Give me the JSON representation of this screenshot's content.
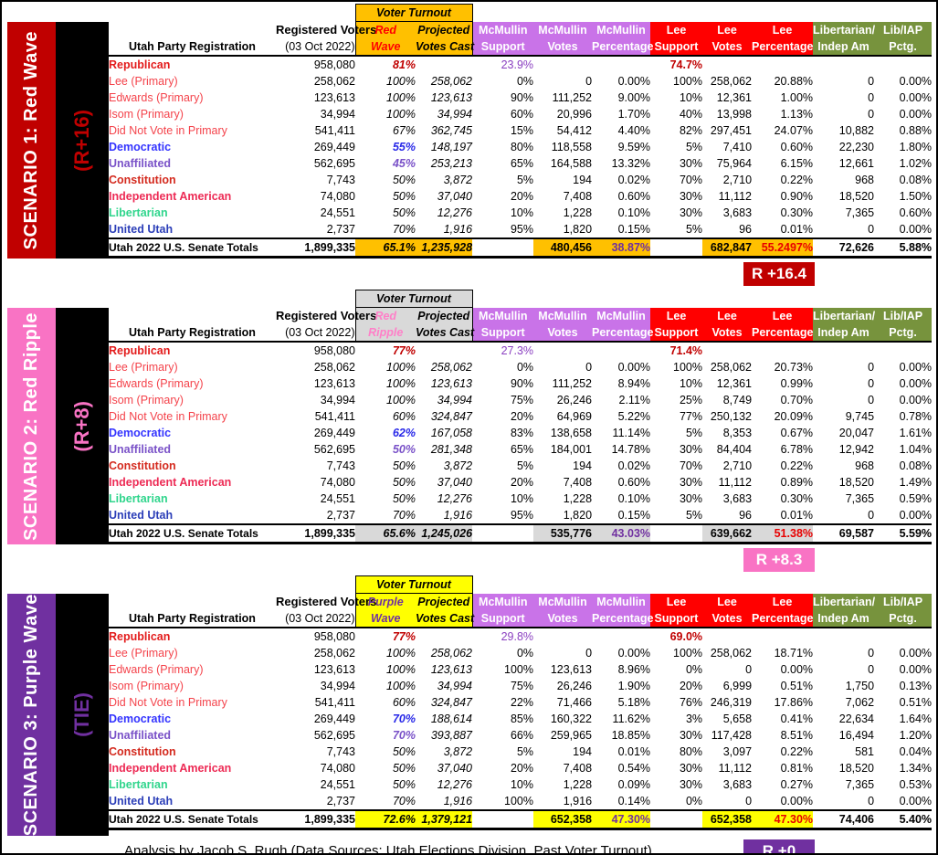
{
  "page": {
    "footer": "Analysis by Jacob S. Rugh (Data Sources: Utah Elections Division, Past Voter Turnout)"
  },
  "palette": {
    "republican_label": "#E31B1B",
    "primary_sub_label": "#F4434B",
    "democratic_label": "#3333FF",
    "unaffiliated_label": "#7A52C8",
    "constitution_label": "#D42A1E",
    "independent_american_label": "#ED2B55",
    "libertarian_label": "#2FD58C",
    "united_utah_label": "#2B3EB8",
    "mcmullin_total_pct": "#7030A0",
    "lee_total_pct": "#E80000"
  },
  "chart_data": {
    "type": "table",
    "group_colors": {
      "mcmullin": "#C973E8",
      "lee": "#FF0000",
      "libertarian": "#77933D"
    },
    "headers": {
      "party_col": "Utah Party Registration",
      "registered": [
        "Registered Voters",
        "(03 Oct 2022)"
      ],
      "voter_turnout": "Voter Turnout",
      "projected": [
        "Projected",
        "Votes Cast"
      ],
      "mcmullin": [
        [
          "McMullin",
          "Support"
        ],
        [
          "McMullin",
          "Votes"
        ],
        [
          "McMullin",
          "Percentage"
        ]
      ],
      "lee": [
        [
          "Lee",
          "Support"
        ],
        [
          "Lee",
          "Votes"
        ],
        [
          "Lee",
          "Percentage"
        ]
      ],
      "lib": [
        [
          "Libertarian/",
          "Indep Am"
        ],
        [
          "Lib/IAP",
          "Pctg."
        ]
      ]
    },
    "column_order": [
      "Registered Voters",
      "Voter Turnout %",
      "Projected Votes Cast",
      "McMullin Support",
      "McMullin Votes",
      "McMullin Percentage",
      "Lee Support",
      "Lee Votes",
      "Lee Percentage",
      "Libertarian/Indep Am Votes",
      "Lib/IAP Pctg."
    ],
    "scenarios": [
      {
        "title": "SCENARIO 1: Red Wave",
        "margin_label": "(R+16)",
        "badge": "R +16.4",
        "turnout_header": [
          "Red",
          "Wave"
        ],
        "colors": {
          "accent": "#C00000",
          "highlight": "#FFC000",
          "turnout_text": "#FF0000",
          "margin_text": "#C00000"
        },
        "rows": [
          {
            "label": "Republican",
            "s": "rep",
            "t": "rep",
            "ov": true,
            "v": [
              "958,080",
              "81%",
              "",
              "23.9%",
              "",
              "",
              "74.7%",
              "",
              "",
              "",
              ""
            ]
          },
          {
            "label": "Lee (Primary)",
            "s": "sub",
            "sub": true,
            "v": [
              "258,062",
              "100%",
              "258,062",
              "0%",
              "0",
              "0.00%",
              "100%",
              "258,062",
              "20.88%",
              "0",
              "0.00%"
            ]
          },
          {
            "label": "Edwards (Primary)",
            "s": "sub",
            "sub": true,
            "v": [
              "123,613",
              "100%",
              "123,613",
              "90%",
              "111,252",
              "9.00%",
              "10%",
              "12,361",
              "1.00%",
              "0",
              "0.00%"
            ]
          },
          {
            "label": "Isom (Primary)",
            "s": "sub",
            "sub": true,
            "v": [
              "34,994",
              "100%",
              "34,994",
              "60%",
              "20,996",
              "1.70%",
              "40%",
              "13,998",
              "1.13%",
              "0",
              "0.00%"
            ]
          },
          {
            "label": "Did Not Vote in Primary",
            "s": "sub",
            "sub": true,
            "v": [
              "541,411",
              "67%",
              "362,745",
              "15%",
              "54,412",
              "4.40%",
              "82%",
              "297,451",
              "24.07%",
              "10,882",
              "0.88%"
            ]
          },
          {
            "label": "Democratic",
            "s": "dem",
            "t": "dem",
            "v": [
              "269,449",
              "55%",
              "148,197",
              "80%",
              "118,558",
              "9.59%",
              "5%",
              "7,410",
              "0.60%",
              "22,230",
              "1.80%"
            ]
          },
          {
            "label": "Unaffiliated",
            "s": "una",
            "t": "una",
            "v": [
              "562,695",
              "45%",
              "253,213",
              "65%",
              "164,588",
              "13.32%",
              "30%",
              "75,964",
              "6.15%",
              "12,661",
              "1.02%"
            ]
          },
          {
            "label": "Constitution",
            "s": "con",
            "v": [
              "7,743",
              "50%",
              "3,872",
              "5%",
              "194",
              "0.02%",
              "70%",
              "2,710",
              "0.22%",
              "968",
              "0.08%"
            ]
          },
          {
            "label": "Independent American",
            "s": "ind",
            "v": [
              "74,080",
              "50%",
              "37,040",
              "20%",
              "7,408",
              "0.60%",
              "30%",
              "11,112",
              "0.90%",
              "18,520",
              "1.50%"
            ]
          },
          {
            "label": "Libertarian",
            "s": "lib",
            "v": [
              "24,551",
              "50%",
              "12,276",
              "10%",
              "1,228",
              "0.10%",
              "30%",
              "3,683",
              "0.30%",
              "7,365",
              "0.60%"
            ]
          },
          {
            "label": "United Utah",
            "s": "uni",
            "v": [
              "2,737",
              "70%",
              "1,916",
              "95%",
              "1,820",
              "0.15%",
              "5%",
              "96",
              "0.01%",
              "0",
              "0.00%"
            ]
          }
        ],
        "totals": {
          "label": "Utah 2022 U.S. Senate Totals",
          "v": [
            "1,899,335",
            "65.1%",
            "1,235,928",
            "",
            "480,456",
            "38.87%",
            "",
            "682,847",
            "55.2497%",
            "72,626",
            "5.88%"
          ]
        }
      },
      {
        "title": "SCENARIO 2: Red Ripple",
        "margin_label": "(R+8)",
        "badge": "R +8.3",
        "turnout_header": [
          "Red",
          "Ripple"
        ],
        "colors": {
          "accent": "#F973C4",
          "highlight": "#D9D9D9",
          "turnout_text": "#FF7FC8",
          "margin_text": "#F973C4"
        },
        "rows": [
          {
            "label": "Republican",
            "s": "rep",
            "t": "rep",
            "ov": true,
            "v": [
              "958,080",
              "77%",
              "",
              "27.3%",
              "",
              "",
              "71.4%",
              "",
              "",
              "",
              ""
            ]
          },
          {
            "label": "Lee (Primary)",
            "s": "sub",
            "sub": true,
            "v": [
              "258,062",
              "100%",
              "258,062",
              "0%",
              "0",
              "0.00%",
              "100%",
              "258,062",
              "20.73%",
              "0",
              "0.00%"
            ]
          },
          {
            "label": "Edwards (Primary)",
            "s": "sub",
            "sub": true,
            "v": [
              "123,613",
              "100%",
              "123,613",
              "90%",
              "111,252",
              "8.94%",
              "10%",
              "12,361",
              "0.99%",
              "0",
              "0.00%"
            ]
          },
          {
            "label": "Isom (Primary)",
            "s": "sub",
            "sub": true,
            "v": [
              "34,994",
              "100%",
              "34,994",
              "75%",
              "26,246",
              "2.11%",
              "25%",
              "8,749",
              "0.70%",
              "0",
              "0.00%"
            ]
          },
          {
            "label": "Did Not Vote in Primary",
            "s": "sub",
            "sub": true,
            "v": [
              "541,411",
              "60%",
              "324,847",
              "20%",
              "64,969",
              "5.22%",
              "77%",
              "250,132",
              "20.09%",
              "9,745",
              "0.78%"
            ]
          },
          {
            "label": "Democratic",
            "s": "dem",
            "t": "dem",
            "v": [
              "269,449",
              "62%",
              "167,058",
              "83%",
              "138,658",
              "11.14%",
              "5%",
              "8,353",
              "0.67%",
              "20,047",
              "1.61%"
            ]
          },
          {
            "label": "Unaffiliated",
            "s": "una",
            "t": "una",
            "v": [
              "562,695",
              "50%",
              "281,348",
              "65%",
              "184,001",
              "14.78%",
              "30%",
              "84,404",
              "6.78%",
              "12,942",
              "1.04%"
            ]
          },
          {
            "label": "Constitution",
            "s": "con",
            "v": [
              "7,743",
              "50%",
              "3,872",
              "5%",
              "194",
              "0.02%",
              "70%",
              "2,710",
              "0.22%",
              "968",
              "0.08%"
            ]
          },
          {
            "label": "Independent American",
            "s": "ind",
            "v": [
              "74,080",
              "50%",
              "37,040",
              "20%",
              "7,408",
              "0.60%",
              "30%",
              "11,112",
              "0.89%",
              "18,520",
              "1.49%"
            ]
          },
          {
            "label": "Libertarian",
            "s": "lib",
            "v": [
              "24,551",
              "50%",
              "12,276",
              "10%",
              "1,228",
              "0.10%",
              "30%",
              "3,683",
              "0.30%",
              "7,365",
              "0.59%"
            ]
          },
          {
            "label": "United Utah",
            "s": "uni",
            "v": [
              "2,737",
              "70%",
              "1,916",
              "95%",
              "1,820",
              "0.15%",
              "5%",
              "96",
              "0.01%",
              "0",
              "0.00%"
            ]
          }
        ],
        "totals": {
          "label": "Utah 2022 U.S. Senate Totals",
          "v": [
            "1,899,335",
            "65.6%",
            "1,245,026",
            "",
            "535,776",
            "43.03%",
            "",
            "639,662",
            "51.38%",
            "69,587",
            "5.59%"
          ]
        }
      },
      {
        "title": "SCENARIO 3: Purple Wave",
        "margin_label": "(TIE)",
        "badge": "R +0",
        "turnout_header": [
          "Purple",
          "Wave"
        ],
        "colors": {
          "accent": "#7030A0",
          "highlight": "#FFFF00",
          "turnout_text": "#7030A0",
          "margin_text": "#7030A0"
        },
        "rows": [
          {
            "label": "Republican",
            "s": "rep",
            "t": "rep",
            "ov": true,
            "v": [
              "958,080",
              "77%",
              "",
              "29.8%",
              "",
              "",
              "69.0%",
              "",
              "",
              "",
              ""
            ]
          },
          {
            "label": "Lee (Primary)",
            "s": "sub",
            "sub": true,
            "v": [
              "258,062",
              "100%",
              "258,062",
              "0%",
              "0",
              "0.00%",
              "100%",
              "258,062",
              "18.71%",
              "0",
              "0.00%"
            ]
          },
          {
            "label": "Edwards (Primary)",
            "s": "sub",
            "sub": true,
            "v": [
              "123,613",
              "100%",
              "123,613",
              "100%",
              "123,613",
              "8.96%",
              "0%",
              "0",
              "0.00%",
              "0",
              "0.00%"
            ]
          },
          {
            "label": "Isom (Primary)",
            "s": "sub",
            "sub": true,
            "v": [
              "34,994",
              "100%",
              "34,994",
              "75%",
              "26,246",
              "1.90%",
              "20%",
              "6,999",
              "0.51%",
              "1,750",
              "0.13%"
            ]
          },
          {
            "label": "Did Not Vote in Primary",
            "s": "sub",
            "sub": true,
            "v": [
              "541,411",
              "60%",
              "324,847",
              "22%",
              "71,466",
              "5.18%",
              "76%",
              "246,319",
              "17.86%",
              "7,062",
              "0.51%"
            ]
          },
          {
            "label": "Democratic",
            "s": "dem",
            "t": "dem",
            "v": [
              "269,449",
              "70%",
              "188,614",
              "85%",
              "160,322",
              "11.62%",
              "3%",
              "5,658",
              "0.41%",
              "22,634",
              "1.64%"
            ]
          },
          {
            "label": "Unaffiliated",
            "s": "una",
            "t": "una",
            "v": [
              "562,695",
              "70%",
              "393,887",
              "66%",
              "259,965",
              "18.85%",
              "30%",
              "117,428",
              "8.51%",
              "16,494",
              "1.20%"
            ]
          },
          {
            "label": "Constitution",
            "s": "con",
            "v": [
              "7,743",
              "50%",
              "3,872",
              "5%",
              "194",
              "0.01%",
              "80%",
              "3,097",
              "0.22%",
              "581",
              "0.04%"
            ]
          },
          {
            "label": "Independent American",
            "s": "ind",
            "v": [
              "74,080",
              "50%",
              "37,040",
              "20%",
              "7,408",
              "0.54%",
              "30%",
              "11,112",
              "0.81%",
              "18,520",
              "1.34%"
            ]
          },
          {
            "label": "Libertarian",
            "s": "lib",
            "v": [
              "24,551",
              "50%",
              "12,276",
              "10%",
              "1,228",
              "0.09%",
              "30%",
              "3,683",
              "0.27%",
              "7,365",
              "0.53%"
            ]
          },
          {
            "label": "United Utah",
            "s": "uni",
            "v": [
              "2,737",
              "70%",
              "1,916",
              "100%",
              "1,916",
              "0.14%",
              "0%",
              "0",
              "0.00%",
              "0",
              "0.00%"
            ]
          }
        ],
        "totals": {
          "label": "Utah 2022 U.S. Senate Totals",
          "v": [
            "1,899,335",
            "72.6%",
            "1,379,121",
            "",
            "652,358",
            "47.30%",
            "",
            "652,358",
            "47.30%",
            "74,406",
            "5.40%"
          ]
        }
      }
    ]
  }
}
